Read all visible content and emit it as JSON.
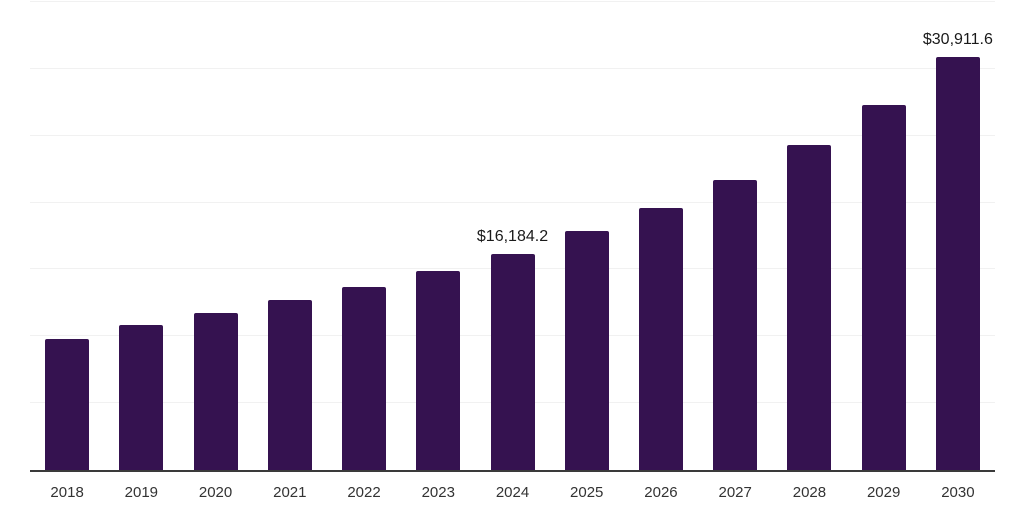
{
  "chart_data": {
    "type": "bar",
    "title": "",
    "xlabel": "",
    "ylabel": "",
    "categories": [
      "2018",
      "2019",
      "2020",
      "2021",
      "2022",
      "2023",
      "2024",
      "2025",
      "2026",
      "2027",
      "2028",
      "2029",
      "2030"
    ],
    "values": [
      9830,
      10880,
      11780,
      12750,
      13720,
      14920,
      16184.2,
      17840,
      19630,
      21720,
      24340,
      27330,
      30911.6
    ],
    "value_labels": {
      "2024": "$16,184.2",
      "2030": "$30,911.6"
    },
    "ylim": [
      0,
      35000
    ],
    "grid_step": 5000,
    "grid": "horizontal-only",
    "legend": "none",
    "y_axis_labels": "none",
    "colors": {
      "bar_fill": "#351250",
      "gridline": "#f1f1f1",
      "axis_line": "#3a3a3a",
      "tick_label": "#333333",
      "value_label": "#1a1a1a",
      "background": "#ffffff"
    }
  }
}
